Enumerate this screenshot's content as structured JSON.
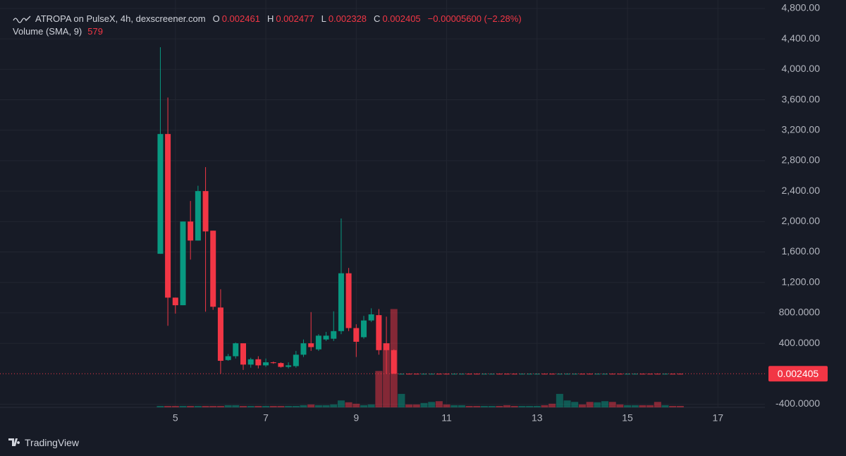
{
  "chart_data": {
    "type": "candlestick",
    "title": "ATROPA on PulseX, 4h, dexscreener.com",
    "ohlc_labels": [
      "O",
      "H",
      "L",
      "C"
    ],
    "change_label": "−0.00005600 (−2.28%)",
    "volume_title": "Volume (SMA, 9)",
    "volume_sma": 579,
    "x": [
      4.667,
      4.833,
      5,
      5.167,
      5.333,
      5.5,
      5.667,
      5.833,
      6,
      6.167,
      6.333,
      6.5,
      6.667,
      6.833,
      7,
      7.167,
      7.333,
      7.5,
      7.667,
      7.833,
      8,
      8.167,
      8.333,
      8.5,
      8.667,
      8.833,
      9,
      9.167,
      9.333,
      9.5,
      9.667,
      9.833,
      10,
      10.167,
      10.333,
      10.5,
      10.667,
      10.833,
      11,
      11.167,
      11.333,
      11.5,
      11.667,
      11.833,
      12,
      12.167,
      12.333,
      12.5,
      12.667,
      12.833,
      13,
      13.167,
      13.333,
      13.5,
      13.667,
      13.833,
      14,
      14.167,
      14.333,
      14.5,
      14.667,
      14.833,
      15,
      15.167,
      15.333,
      15.5,
      15.667,
      15.833,
      16,
      16.167
    ],
    "open": [
      1576,
      3150,
      1000,
      900,
      2000,
      1750,
      2400,
      1880,
      870,
      180,
      230,
      400,
      120,
      190,
      110,
      150,
      140,
      90,
      100,
      250,
      400,
      320,
      450,
      460,
      560,
      1320,
      600,
      480,
      700,
      770,
      400,
      310,
      0.0024,
      0.00251,
      0.00246,
      0.00238,
      0.00244,
      0.00249,
      0.00242,
      0.00236,
      0.00243,
      0.0025,
      0.00247,
      0.00239,
      0.00245,
      0.00252,
      0.00248,
      0.00241,
      0.00237,
      0.00244,
      0.0025,
      0.00255,
      0.00249,
      0.00243,
      0.00246,
      0.00253,
      0.00258,
      0.00251,
      0.00245,
      0.00249,
      0.00254,
      0.0025,
      0.00247,
      0.00252,
      0.00256,
      0.00251,
      0.00248,
      0.00244,
      0.00249,
      0.002461
    ],
    "high": [
      4290,
      3630,
      1000,
      2000,
      2270,
      2470,
      2715,
      1880,
      1110,
      260,
      410,
      400,
      210,
      230,
      200,
      160,
      150,
      150,
      300,
      450,
      810,
      520,
      550,
      820,
      2040,
      1390,
      650,
      760,
      860,
      850,
      750,
      320,
      0.00254,
      0.00254,
      0.00249,
      0.00247,
      0.00252,
      0.00252,
      0.00245,
      0.00246,
      0.00253,
      0.00253,
      0.0025,
      0.00248,
      0.00255,
      0.00255,
      0.00251,
      0.00244,
      0.00247,
      0.00253,
      0.00258,
      0.00258,
      0.00252,
      0.00249,
      0.00256,
      0.00261,
      0.00261,
      0.00254,
      0.00252,
      0.00257,
      0.00257,
      0.00253,
      0.00255,
      0.00259,
      0.00259,
      0.00254,
      0.00251,
      0.00252,
      0.00252,
      0.002477
    ],
    "low": [
      1576,
      630,
      790,
      900,
      1500,
      1750,
      815,
      840,
      0,
      170,
      200,
      50,
      80,
      70,
      90,
      130,
      80,
      70,
      80,
      220,
      300,
      300,
      430,
      430,
      520,
      560,
      220,
      460,
      680,
      250,
      0,
      0,
      0.00237,
      0.00243,
      0.00235,
      0.00235,
      0.00241,
      0.00239,
      0.00233,
      0.00233,
      0.0024,
      0.00244,
      0.00236,
      0.00236,
      0.00242,
      0.00245,
      0.00238,
      0.00234,
      0.00234,
      0.00241,
      0.00247,
      0.00246,
      0.0024,
      0.0024,
      0.00243,
      0.0025,
      0.00248,
      0.00242,
      0.00242,
      0.00246,
      0.00247,
      0.00244,
      0.00244,
      0.00249,
      0.00248,
      0.00245,
      0.00241,
      0.00241,
      0.00243,
      0.002328
    ],
    "close": [
      3150,
      1000,
      900,
      2000,
      1750,
      2400,
      1870,
      880,
      170,
      230,
      400,
      120,
      190,
      110,
      150,
      140,
      90,
      110,
      250,
      400,
      350,
      500,
      500,
      560,
      1320,
      600,
      420,
      700,
      780,
      310,
      310,
      0.0024,
      0.00251,
      0.00246,
      0.00238,
      0.00244,
      0.00249,
      0.00242,
      0.00236,
      0.00243,
      0.0025,
      0.00247,
      0.00239,
      0.00245,
      0.00252,
      0.00248,
      0.00241,
      0.00237,
      0.00244,
      0.0025,
      0.00255,
      0.00249,
      0.00243,
      0.00246,
      0.00253,
      0.00258,
      0.00251,
      0.00245,
      0.00249,
      0.00254,
      0.0025,
      0.00247,
      0.00252,
      0.00256,
      0.00251,
      0.00248,
      0.00244,
      0.00249,
      0.002461,
      0.002405
    ],
    "volume": [
      400,
      400,
      400,
      400,
      400,
      400,
      400,
      400,
      400,
      600,
      600,
      400,
      400,
      400,
      400,
      400,
      400,
      400,
      400,
      600,
      800,
      600,
      600,
      800,
      1900,
      1400,
      1000,
      600,
      800,
      10000,
      17600,
      27000,
      3700,
      800,
      800,
      1200,
      1500,
      1700,
      800,
      600,
      600,
      400,
      400,
      400,
      400,
      400,
      600,
      400,
      400,
      400,
      400,
      600,
      1000,
      3700,
      1900,
      1500,
      800,
      1500,
      1400,
      1700,
      1500,
      800,
      600,
      600,
      600,
      600,
      1500,
      600,
      400,
      400
    ],
    "up_color": "#089981",
    "down_color": "#f23645",
    "xlim": [
      1.12,
      18.04
    ],
    "ylim": [
      -442,
      4911
    ],
    "vlim": [
      0,
      30000
    ],
    "xticks": [
      5,
      7,
      9,
      11,
      13,
      15,
      17
    ],
    "yticks": [
      {
        "value": 4800,
        "label": "4,800.00"
      },
      {
        "value": 4400,
        "label": "4,400.00"
      },
      {
        "value": 4000,
        "label": "4,000.00"
      },
      {
        "value": 3600,
        "label": "3,600.00"
      },
      {
        "value": 3200,
        "label": "3,200.00"
      },
      {
        "value": 2800,
        "label": "2,800.00"
      },
      {
        "value": 2400,
        "label": "2,400.00"
      },
      {
        "value": 2000,
        "label": "2,000.00"
      },
      {
        "value": 1600,
        "label": "1,600.00"
      },
      {
        "value": 1200,
        "label": "1,200.00"
      },
      {
        "value": 800,
        "label": "800.0000"
      },
      {
        "value": 400,
        "label": "400.0000"
      },
      {
        "value": -400,
        "label": "-400.0000"
      }
    ],
    "grid": true,
    "last_price_line": true
  },
  "footer": {
    "brand": "TradingView"
  }
}
